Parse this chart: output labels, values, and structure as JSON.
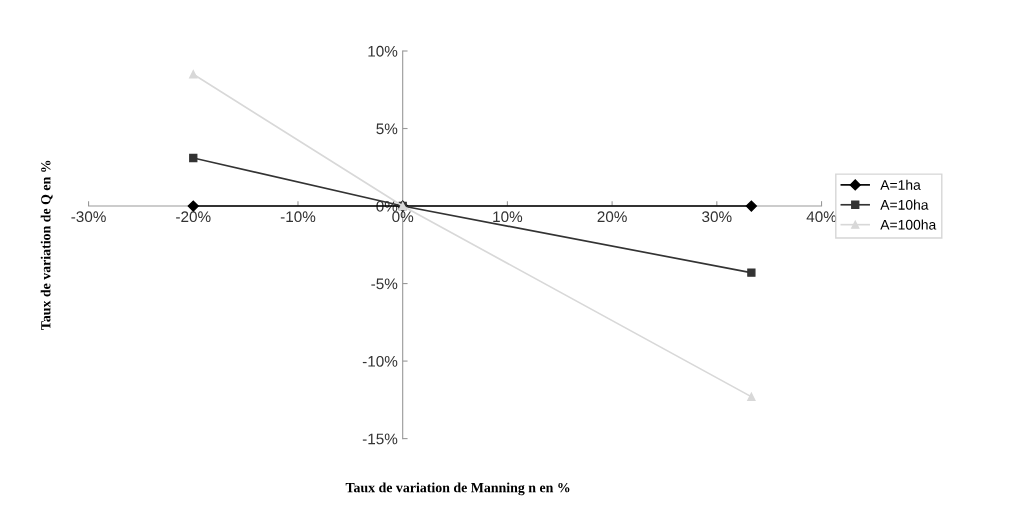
{
  "chart_data": {
    "type": "line",
    "xlabel": "Taux de variation de Manning n en %",
    "ylabel": "Taux de variation de Q en %",
    "x": [
      -20,
      0,
      33.3
    ],
    "series": [
      {
        "name": "A=1ha",
        "color": "#000000",
        "marker": "diamond",
        "values": [
          0,
          0,
          0
        ]
      },
      {
        "name": "A=10ha",
        "color": "#333333",
        "marker": "square",
        "values": [
          3.1,
          0,
          -4.3
        ]
      },
      {
        "name": "A=100ha",
        "color": "#d8d8d8",
        "marker": "triangle",
        "values": [
          8.5,
          0,
          -12.3
        ]
      }
    ],
    "xlim": [
      -30,
      40
    ],
    "xticks": [
      {
        "value": -30,
        "label": "-30%"
      },
      {
        "value": -20,
        "label": "-20%"
      },
      {
        "value": -10,
        "label": "-10%"
      },
      {
        "value": 0,
        "label": "0%"
      },
      {
        "value": 10,
        "label": "10%"
      },
      {
        "value": 20,
        "label": "20%"
      },
      {
        "value": 30,
        "label": "30%"
      },
      {
        "value": 40,
        "label": "40%"
      }
    ],
    "ylim": [
      -15,
      10
    ],
    "yticks": [
      {
        "value": -15,
        "label": "-15%"
      },
      {
        "value": -10,
        "label": "-10%"
      },
      {
        "value": -5,
        "label": "-5%"
      },
      {
        "value": 0,
        "label": "0%"
      },
      {
        "value": 5,
        "label": "5%"
      },
      {
        "value": 10,
        "label": "10%"
      }
    ],
    "grid": false,
    "legend": "right",
    "line_style": "solid"
  }
}
